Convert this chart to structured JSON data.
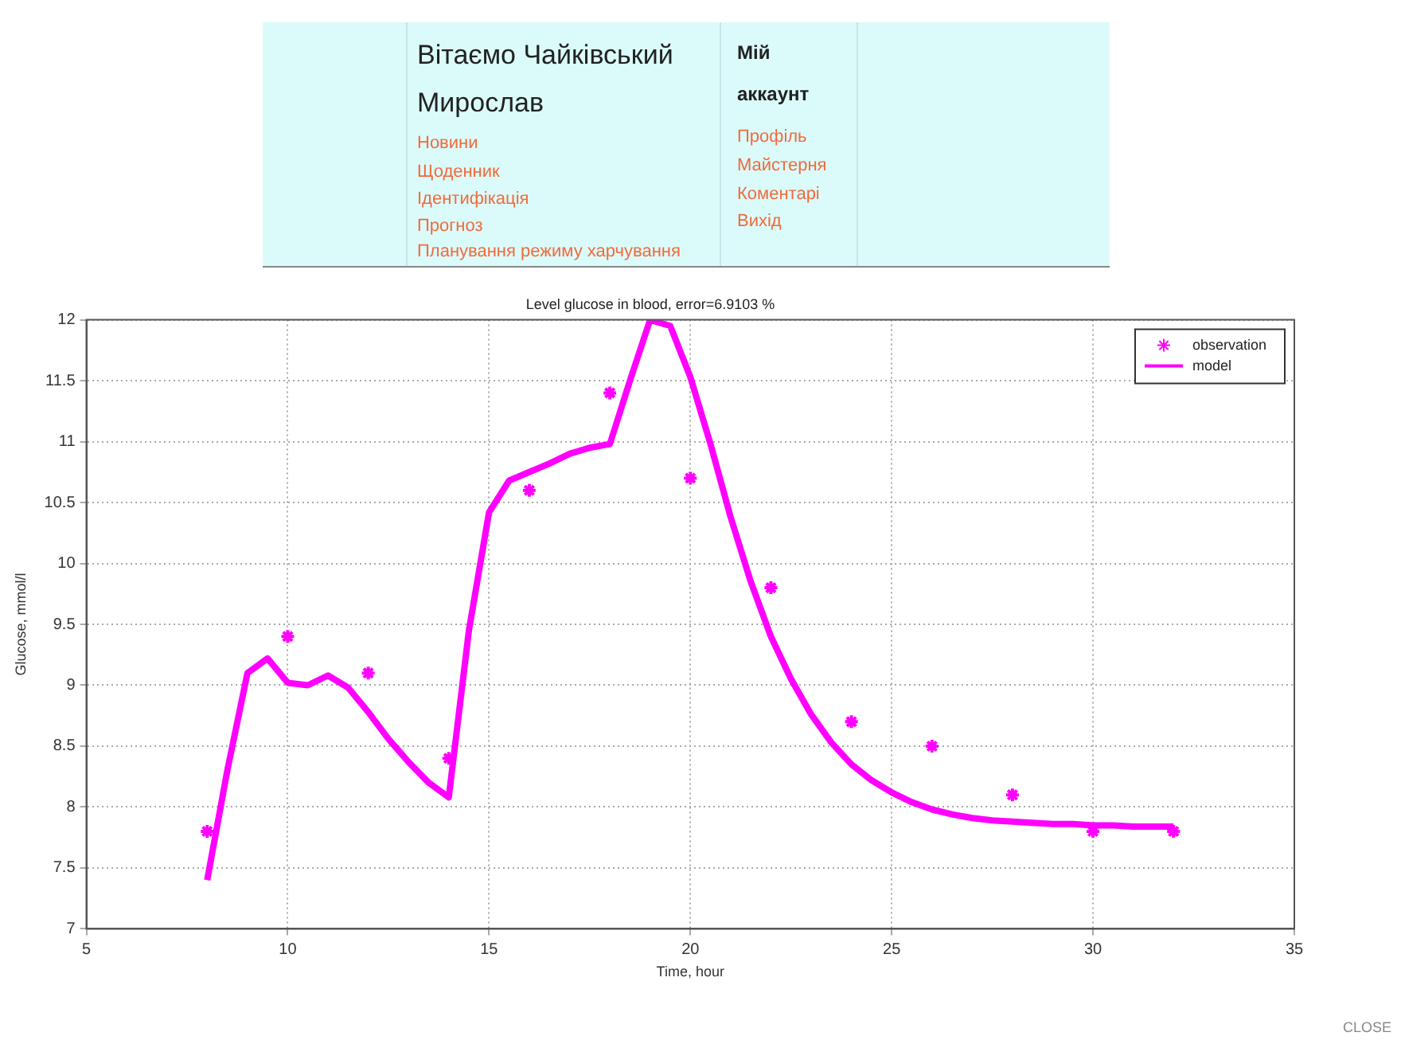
{
  "chart_data": {
    "type": "line",
    "title": "Level glucose in blood, error=6.9103 %",
    "xlabel": "Time, hour",
    "ylabel": "Glucose, mmol/l",
    "xlim": [
      5,
      35
    ],
    "xticks": [
      5,
      10,
      15,
      20,
      25,
      30,
      35
    ],
    "ylim": [
      7,
      12
    ],
    "yticks": [
      7,
      7.5,
      8,
      8.5,
      9,
      9.5,
      10,
      10.5,
      11,
      11.5,
      12
    ],
    "grid": true,
    "legend": "top right",
    "series": [
      {
        "name": "observation",
        "type": "scatter",
        "marker": "cross",
        "color": "#ff00ff",
        "x": [
          8,
          10,
          12,
          14,
          16,
          18,
          20,
          22,
          24,
          26,
          28,
          30,
          32
        ],
        "values": [
          7.8,
          9.4,
          9.1,
          8.4,
          10.6,
          11.4,
          10.7,
          9.8,
          8.7,
          8.5,
          8.1,
          7.8,
          7.8
        ]
      },
      {
        "name": "model",
        "type": "line",
        "marker": "none",
        "line_style": "solid",
        "color": "#ff00ff",
        "x": [
          8,
          8.5,
          9,
          9.5,
          10,
          10.5,
          11,
          11.5,
          12,
          12.5,
          13,
          13.5,
          14,
          14.5,
          15,
          15.5,
          16,
          16.5,
          17,
          17.5,
          18,
          18.5,
          19,
          19.5,
          20,
          20.5,
          21,
          21.5,
          22,
          22.5,
          23,
          23.5,
          24,
          24.5,
          25,
          25.5,
          26,
          26.5,
          27,
          27.5,
          28,
          28.5,
          29,
          29.5,
          30,
          30.5,
          31,
          31.5,
          32
        ],
        "values": [
          7.4,
          8.3,
          9.1,
          9.22,
          9.02,
          9.0,
          9.08,
          8.98,
          8.78,
          8.56,
          8.37,
          8.2,
          8.08,
          9.45,
          10.42,
          10.68,
          10.75,
          10.82,
          10.9,
          10.95,
          10.98,
          11.5,
          12.0,
          11.95,
          11.53,
          10.98,
          10.38,
          9.85,
          9.4,
          9.05,
          8.76,
          8.53,
          8.35,
          8.22,
          8.12,
          8.04,
          7.98,
          7.94,
          7.91,
          7.89,
          7.88,
          7.87,
          7.86,
          7.86,
          7.85,
          7.85,
          7.84,
          7.84,
          7.84
        ]
      }
    ],
    "annotations": [
      "Вітаємо Чайківський Мирослав",
      "Новини",
      "Щоденник",
      "Ідентифікація",
      "Прогноз",
      "Планування режиму харчування",
      "Мій аккаунт",
      "Профіль",
      "Майстерня",
      "Коментарі",
      "Вихід",
      "CLOSE"
    ]
  }
}
